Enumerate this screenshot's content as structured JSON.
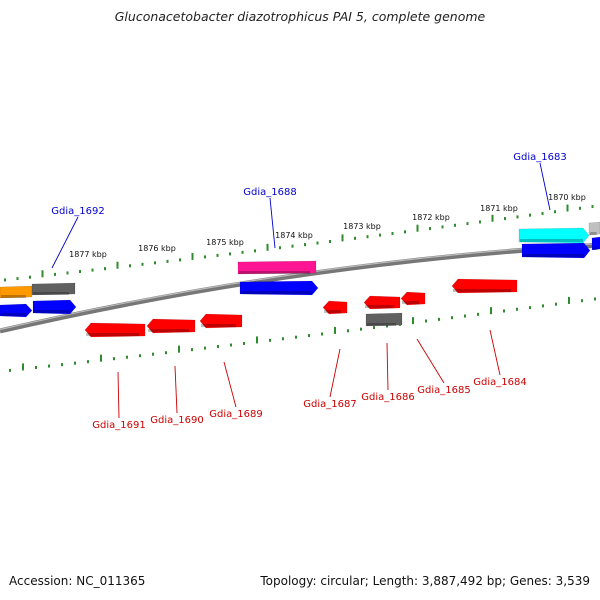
{
  "title": "Gluconacetobacter diazotrophicus PAI 5, complete genome",
  "footer": {
    "accession": "Accession: NC_011365",
    "summary": "Topology: circular; Length: 3,887,492 bp; Genes: 3,539"
  },
  "colors": {
    "backbone": "#808080",
    "tick": "#2e8b2e",
    "plus_label": "#0000cc",
    "minus_label": "#cc0000",
    "red": "#ff0000",
    "blue": "#0000ff",
    "gray": "#606060",
    "magenta": "#ff1493",
    "cyan": "#00ffff",
    "orange": "#ff9900",
    "lightgray": "#c0c0c0"
  },
  "scale": {
    "unit": "kbp",
    "labels": [
      "1877 kbp",
      "1876 kbp",
      "1875 kbp",
      "1874 kbp",
      "1873 kbp",
      "1872 kbp",
      "1871 kbp",
      "1870 kbp"
    ]
  },
  "genes": {
    "labeled_top": [
      "Gdia_1692",
      "Gdia_1688",
      "Gdia_1683"
    ],
    "labeled_bottom": [
      "Gdia_1691",
      "Gdia_1690",
      "Gdia_1689",
      "Gdia_1687",
      "Gdia_1686",
      "Gdia_1685",
      "Gdia_1684"
    ]
  }
}
